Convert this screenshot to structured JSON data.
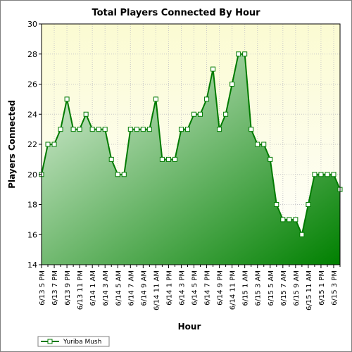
{
  "chart_data": {
    "type": "area",
    "title": "Total Players Connected By Hour",
    "xlabel": "Hour",
    "ylabel": "Players Connected",
    "ylim": [
      14,
      30
    ],
    "yticks": [
      14,
      16,
      18,
      20,
      22,
      24,
      26,
      28,
      30
    ],
    "grid": true,
    "legend_position": "bottom-left",
    "colors": {
      "line": "#007a00",
      "fill_light": "#e4f3e2",
      "fill_dark": "#008000",
      "plot_bg_top": "#fbfbd2",
      "plot_bg_bottom": "#ffffff",
      "grid": "#c8c8c8"
    },
    "x_tick_labels": [
      "6/13 5 PM",
      "6/13 7 PM",
      "6/13 9 PM",
      "6/13 11 PM",
      "6/14 1 AM",
      "6/14 3 AM",
      "6/14 5 AM",
      "6/14 7 AM",
      "6/14 9 AM",
      "6/14 11 AM",
      "6/14 1 PM",
      "6/14 3 PM",
      "6/14 5 PM",
      "6/14 7 PM",
      "6/14 9 PM",
      "6/14 11 PM",
      "6/15 1 AM",
      "6/15 3 AM",
      "6/15 5 AM",
      "6/15 7 AM",
      "6/15 9 AM",
      "6/15 11 AM",
      "6/15 1 PM",
      "6/15 3 PM"
    ],
    "series": [
      {
        "name": "Yuriba Mush",
        "values": [
          20,
          22,
          22,
          23,
          25,
          23,
          23,
          24,
          23,
          23,
          23,
          21,
          20,
          20,
          23,
          23,
          23,
          23,
          25,
          21,
          21,
          21,
          23,
          23,
          24,
          24,
          25,
          27,
          23,
          24,
          26,
          28,
          28,
          23,
          22,
          22,
          21,
          18,
          17,
          17,
          17,
          16,
          18,
          20,
          20,
          20,
          20,
          19
        ]
      }
    ]
  }
}
